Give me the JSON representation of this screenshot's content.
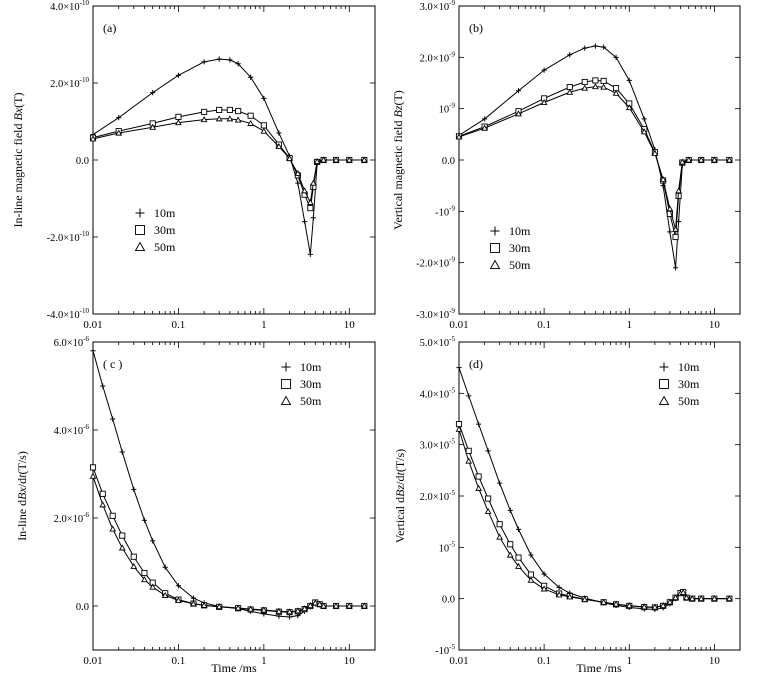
{
  "x_axis_label": "Time /ms",
  "legend_entries": [
    {
      "label": "10m",
      "marker": "plus"
    },
    {
      "label": "30m",
      "marker": "square"
    },
    {
      "label": "50m",
      "marker": "triangle"
    }
  ],
  "chart_data": [
    {
      "id": "a",
      "panel_label": "(a)",
      "type": "line",
      "ylabel_parts": [
        "In-line magnetic field ",
        "Bx",
        "(T)"
      ],
      "x_scale": "log",
      "xlim": [
        0.01,
        20
      ],
      "x_ticks": [
        0.01,
        0.1,
        1,
        10
      ],
      "x_tick_labels": [
        "0.01",
        "0.1",
        "1",
        "10"
      ],
      "ylim": [
        -4e-10,
        4e-10
      ],
      "y_ticks": [
        -4e-10,
        -2e-10,
        0,
        2e-10,
        4e-10
      ],
      "y_tick_labels": [
        [
          "-4.0×10",
          "-10"
        ],
        [
          "-2.0×10",
          "-10"
        ],
        [
          "0.0",
          ""
        ],
        [
          "2.0×10",
          "-10"
        ],
        [
          "4.0×10",
          "-10"
        ]
      ],
      "legend_position": "lower-left",
      "series": [
        {
          "name": "10m",
          "marker": "plus",
          "x": [
            0.01,
            0.02,
            0.05,
            0.1,
            0.2,
            0.3,
            0.4,
            0.5,
            0.7,
            1.0,
            1.5,
            2.0,
            2.5,
            3.0,
            3.5,
            3.8,
            4.2,
            5,
            7,
            10,
            15
          ],
          "y": [
            6.6e-11,
            1.1e-10,
            1.75e-10,
            2.2e-10,
            2.55e-10,
            2.62e-10,
            2.6e-10,
            2.5e-10,
            2.15e-10,
            1.6e-10,
            7e-11,
            1e-11,
            -6e-11,
            -1.6e-10,
            -2.45e-10,
            -1.5e-10,
            -1e-11,
            0,
            0,
            0,
            0
          ]
        },
        {
          "name": "30m",
          "marker": "square",
          "x": [
            0.01,
            0.02,
            0.05,
            0.1,
            0.2,
            0.3,
            0.4,
            0.5,
            0.7,
            1.0,
            1.5,
            2.0,
            2.5,
            3.0,
            3.5,
            3.8,
            4.2,
            5,
            7,
            10,
            15
          ],
          "y": [
            5.8e-11,
            7.5e-11,
            9.5e-11,
            1.12e-10,
            1.25e-10,
            1.3e-10,
            1.3e-10,
            1.27e-10,
            1.15e-10,
            9e-11,
            4e-11,
            5e-12,
            -4e-11,
            -9e-11,
            -1.25e-10,
            -7e-11,
            -5e-12,
            0,
            0,
            0,
            0
          ]
        },
        {
          "name": "50m",
          "marker": "triangle",
          "x": [
            0.01,
            0.02,
            0.05,
            0.1,
            0.2,
            0.3,
            0.4,
            0.5,
            0.7,
            1.0,
            1.5,
            2.0,
            2.5,
            3.0,
            3.5,
            3.8,
            4.2,
            5,
            7,
            10,
            15
          ],
          "y": [
            5.5e-11,
            7e-11,
            8.5e-11,
            9.7e-11,
            1.05e-10,
            1.07e-10,
            1.07e-10,
            1.04e-10,
            9.5e-11,
            7.5e-11,
            3.5e-11,
            4e-12,
            -3.5e-11,
            -8e-11,
            -1.1e-10,
            -6e-11,
            -4e-12,
            0,
            0,
            0,
            0
          ]
        }
      ]
    },
    {
      "id": "b",
      "panel_label": "(b)",
      "type": "line",
      "ylabel_parts": [
        "Vertical magnetic field ",
        "Bz",
        "(T)"
      ],
      "x_scale": "log",
      "xlim": [
        0.01,
        20
      ],
      "x_ticks": [
        0.01,
        0.1,
        1,
        10
      ],
      "x_tick_labels": [
        "0.01",
        "0.1",
        "1",
        "10"
      ],
      "ylim": [
        -3e-09,
        3e-09
      ],
      "y_ticks": [
        -3e-09,
        -2e-09,
        -1e-09,
        0,
        1e-09,
        2e-09,
        3e-09
      ],
      "y_tick_labels": [
        [
          "-3.0×10",
          "-9"
        ],
        [
          "-2.0×10",
          "-9"
        ],
        [
          "-10",
          "-9"
        ],
        [
          "0.0",
          ""
        ],
        [
          "10",
          "-9"
        ],
        [
          "2.0×10",
          "-9"
        ],
        [
          "3.0×10",
          "-9"
        ]
      ],
      "legend_position": "lower-left",
      "series": [
        {
          "name": "10m",
          "marker": "plus",
          "x": [
            0.01,
            0.02,
            0.05,
            0.1,
            0.2,
            0.3,
            0.4,
            0.5,
            0.7,
            1.0,
            1.5,
            2.0,
            2.5,
            3.0,
            3.5,
            3.8,
            4.2,
            5,
            7,
            10,
            15
          ],
          "y": [
            4.8e-10,
            8e-10,
            1.35e-09,
            1.75e-09,
            2.05e-09,
            2.18e-09,
            2.22e-09,
            2.2e-09,
            2e-09,
            1.55e-09,
            8e-10,
            2e-10,
            -5e-10,
            -1.4e-09,
            -2.1e-09,
            -1.2e-09,
            -1e-10,
            0,
            0,
            0,
            0
          ]
        },
        {
          "name": "30m",
          "marker": "square",
          "x": [
            0.01,
            0.02,
            0.05,
            0.1,
            0.2,
            0.3,
            0.4,
            0.5,
            0.7,
            1.0,
            1.5,
            2.0,
            2.5,
            3.0,
            3.5,
            3.8,
            4.2,
            5,
            7,
            10,
            15
          ],
          "y": [
            4.6e-10,
            6.5e-10,
            9.5e-10,
            1.2e-09,
            1.42e-09,
            1.52e-09,
            1.55e-09,
            1.54e-09,
            1.4e-09,
            1.1e-09,
            6e-10,
            1.5e-10,
            -4e-10,
            -1.05e-09,
            -1.5e-09,
            -7e-10,
            -5e-11,
            0,
            0,
            0,
            0
          ]
        },
        {
          "name": "50m",
          "marker": "triangle",
          "x": [
            0.01,
            0.02,
            0.05,
            0.1,
            0.2,
            0.3,
            0.4,
            0.5,
            0.7,
            1.0,
            1.5,
            2.0,
            2.5,
            3.0,
            3.5,
            3.8,
            4.2,
            5,
            7,
            10,
            15
          ],
          "y": [
            4.5e-10,
            6.2e-10,
            9e-10,
            1.12e-09,
            1.32e-09,
            1.4e-09,
            1.43e-09,
            1.42e-09,
            1.3e-09,
            1.02e-09,
            5.5e-10,
            1.3e-10,
            -3.8e-10,
            -9.5e-10,
            -1.35e-09,
            -6e-10,
            -4e-11,
            0,
            0,
            0,
            0
          ]
        }
      ]
    },
    {
      "id": "c",
      "panel_label": "( c )",
      "type": "line",
      "ylabel_parts": [
        "In-line d",
        "Bx",
        "/d",
        "t",
        "(T/s)"
      ],
      "x_scale": "log",
      "xlim": [
        0.01,
        20
      ],
      "x_ticks": [
        0.01,
        0.1,
        1,
        10
      ],
      "x_tick_labels": [
        "0.01",
        "0.1",
        "1",
        "10"
      ],
      "ylim": [
        -1e-06,
        6e-06
      ],
      "y_ticks": [
        0,
        2e-06,
        4e-06,
        6e-06
      ],
      "y_tick_labels": [
        [
          "0.0",
          ""
        ],
        [
          "2.0×10",
          "-6"
        ],
        [
          "4.0×10",
          "-6"
        ],
        [
          "6.0×10",
          "-6"
        ]
      ],
      "legend_position": "top-right",
      "series": [
        {
          "name": "10m",
          "marker": "plus",
          "x": [
            0.01,
            0.013,
            0.017,
            0.022,
            0.03,
            0.04,
            0.05,
            0.07,
            0.1,
            0.15,
            0.2,
            0.3,
            0.5,
            0.7,
            1.0,
            1.5,
            2.0,
            2.5,
            3.0,
            3.5,
            4.0,
            4.5,
            5,
            7,
            10,
            15
          ],
          "y": [
            5.8e-06,
            5e-06,
            4.25e-06,
            3.5e-06,
            2.65e-06,
            1.95e-06,
            1.48e-06,
            8.8e-07,
            4.6e-07,
            1.8e-07,
            7e-08,
            -1e-08,
            -6e-08,
            -1.2e-07,
            -1.8e-07,
            -2.3e-07,
            -2.5e-07,
            -2.2e-07,
            -1.2e-07,
            -2e-08,
            5e-08,
            3e-08,
            0,
            0,
            0,
            0
          ]
        },
        {
          "name": "30m",
          "marker": "square",
          "x": [
            0.01,
            0.013,
            0.017,
            0.022,
            0.03,
            0.04,
            0.05,
            0.07,
            0.1,
            0.15,
            0.2,
            0.3,
            0.5,
            0.7,
            1.0,
            1.5,
            2.0,
            2.5,
            3.0,
            3.5,
            4.0,
            4.5,
            5,
            7,
            10,
            15
          ],
          "y": [
            3.15e-06,
            2.55e-06,
            2.05e-06,
            1.6e-06,
            1.12e-06,
            7.5e-07,
            5.3e-07,
            2.9e-07,
            1.45e-07,
            5.5e-08,
            1.5e-08,
            -2e-08,
            -5e-08,
            -8e-08,
            -1e-07,
            -1.3e-07,
            -1.4e-07,
            -1.2e-07,
            -7e-08,
            0,
            8e-08,
            4e-08,
            0,
            0,
            0,
            0
          ]
        },
        {
          "name": "50m",
          "marker": "triangle",
          "x": [
            0.01,
            0.013,
            0.017,
            0.022,
            0.03,
            0.04,
            0.05,
            0.07,
            0.1,
            0.15,
            0.2,
            0.3,
            0.5,
            0.7,
            1.0,
            1.5,
            2.0,
            2.5,
            3.0,
            3.5,
            4.0,
            4.5,
            5,
            7,
            10,
            15
          ],
          "y": [
            2.95e-06,
            2.3e-06,
            1.75e-06,
            1.32e-06,
            9e-07,
            6e-07,
            4.3e-07,
            2.4e-07,
            1.25e-07,
            5e-08,
            1.5e-08,
            -1.5e-08,
            -4.5e-08,
            -7e-08,
            -9e-08,
            -1.2e-07,
            -1.3e-07,
            -1.1e-07,
            -6e-08,
            1e-08,
            7e-08,
            4e-08,
            0,
            0,
            0,
            0
          ]
        }
      ]
    },
    {
      "id": "d",
      "panel_label": "(d)",
      "type": "line",
      "ylabel_parts": [
        "Vertical d",
        "Bz",
        "/d",
        "t",
        "(T/s)"
      ],
      "x_scale": "log",
      "xlim": [
        0.01,
        20
      ],
      "x_ticks": [
        0.01,
        0.1,
        1,
        10
      ],
      "x_tick_labels": [
        "0.01",
        "0.1",
        "1",
        "10"
      ],
      "ylim": [
        -1e-05,
        5e-05
      ],
      "y_ticks": [
        -1e-05,
        0,
        1e-05,
        2e-05,
        3e-05,
        4e-05,
        5e-05
      ],
      "y_tick_labels": [
        [
          "-10",
          "-5"
        ],
        [
          "0.0",
          ""
        ],
        [
          "10",
          "-5"
        ],
        [
          "2.0×10",
          "-5"
        ],
        [
          "3.0×10",
          "-5"
        ],
        [
          "4.0×10",
          "-5"
        ],
        [
          "5.0×10",
          "-5"
        ]
      ],
      "legend_position": "top-right",
      "series": [
        {
          "name": "10m",
          "marker": "plus",
          "x": [
            0.01,
            0.013,
            0.017,
            0.022,
            0.03,
            0.04,
            0.05,
            0.07,
            0.1,
            0.15,
            0.2,
            0.3,
            0.5,
            0.7,
            1.0,
            1.5,
            2.0,
            2.5,
            3.0,
            3.5,
            4.0,
            4.3,
            4.7,
            5.5,
            7,
            10,
            15
          ],
          "y": [
            4.5e-05,
            3.95e-05,
            3.4e-05,
            2.88e-05,
            2.25e-05,
            1.72e-05,
            1.35e-05,
            8.5e-06,
            4.8e-06,
            2.2e-06,
            1.1e-06,
            1e-07,
            -8e-07,
            -1.3e-06,
            -1.7e-06,
            -2e-06,
            -2.1e-06,
            -1.8e-06,
            -1e-06,
            0,
            1e-06,
            1.3e-06,
            2e-07,
            0,
            0,
            0,
            0
          ]
        },
        {
          "name": "30m",
          "marker": "square",
          "x": [
            0.01,
            0.013,
            0.017,
            0.022,
            0.03,
            0.04,
            0.05,
            0.07,
            0.1,
            0.15,
            0.2,
            0.3,
            0.5,
            0.7,
            1.0,
            1.5,
            2.0,
            2.5,
            3.0,
            3.5,
            4.0,
            4.3,
            4.7,
            5.5,
            7,
            10,
            15
          ],
          "y": [
            3.4e-05,
            2.88e-05,
            2.38e-05,
            1.95e-05,
            1.45e-05,
            1.06e-05,
            8e-06,
            4.7e-06,
            2.5e-06,
            1e-06,
            5e-07,
            -1e-07,
            -7e-07,
            -1.1e-06,
            -1.4e-06,
            -1.65e-06,
            -1.7e-06,
            -1.4e-06,
            -7e-07,
            2e-07,
            1.1e-06,
            1.3e-06,
            2e-07,
            0,
            0,
            0,
            0
          ]
        },
        {
          "name": "50m",
          "marker": "triangle",
          "x": [
            0.01,
            0.013,
            0.017,
            0.022,
            0.03,
            0.04,
            0.05,
            0.07,
            0.1,
            0.15,
            0.2,
            0.3,
            0.5,
            0.7,
            1.0,
            1.5,
            2.0,
            2.5,
            3.0,
            3.5,
            4.0,
            4.3,
            4.7,
            5.5,
            7,
            10,
            15
          ],
          "y": [
            3.3e-05,
            2.68e-05,
            2.15e-05,
            1.7e-05,
            1.2e-05,
            8.5e-06,
            6.3e-06,
            3.6e-06,
            1.9e-06,
            7.5e-07,
            3.5e-07,
            -1.5e-07,
            -7e-07,
            -1.05e-06,
            -1.35e-06,
            -1.6e-06,
            -1.65e-06,
            -1.35e-06,
            -6.5e-07,
            2e-07,
            1e-06,
            1.2e-06,
            2e-07,
            0,
            0,
            0,
            0
          ]
        }
      ]
    }
  ]
}
